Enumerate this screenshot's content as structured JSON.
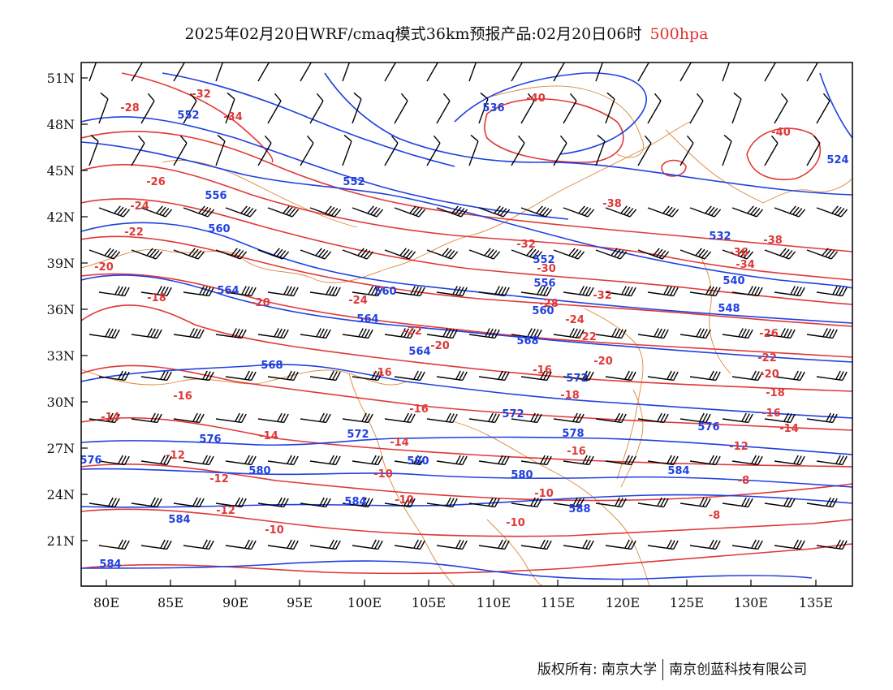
{
  "title": {
    "main": "2025年02月20日WRF/cmaq模式36km预报产品:02月20日06时",
    "level": "500hpa"
  },
  "colors": {
    "height": "#2040e0",
    "temperature": "#e03838",
    "border": "#d8883a",
    "frame": "#000000"
  },
  "axes": {
    "y_labels": [
      "51N",
      "48N",
      "45N",
      "42N",
      "39N",
      "36N",
      "33N",
      "30N",
      "27N",
      "24N",
      "21N"
    ],
    "x_labels": [
      "80E",
      "85E",
      "90E",
      "95E",
      "100E",
      "105E",
      "110E",
      "115E",
      "120E",
      "125E",
      "130E",
      "135E"
    ]
  },
  "contour_labels": {
    "height": [
      "552",
      "536",
      "552",
      "524",
      "556",
      "560",
      "532",
      "552",
      "556",
      "560",
      "564",
      "564",
      "540",
      "548",
      "560",
      "568",
      "568",
      "564",
      "572",
      "572",
      "572",
      "576",
      "576",
      "576",
      "578",
      "580",
      "580",
      "584",
      "580",
      "584",
      "584",
      "584",
      "588"
    ],
    "temperature": [
      "-28",
      "-32",
      "-34",
      "-40",
      "-40",
      "-26",
      "-38",
      "-24",
      "-22",
      "-32",
      "-38",
      "-36",
      "-20",
      "-30",
      "-34",
      "-18",
      "-20",
      "-24",
      "-28",
      "-32",
      "-26",
      "-22",
      "-24",
      "-22",
      "-20",
      "-16",
      "-16",
      "-20",
      "-22",
      "-20",
      "-18",
      "-16",
      "-18",
      "-16",
      "-16",
      "-14",
      "-14",
      "-14",
      "-12",
      "-16",
      "-14",
      "-12",
      "-12",
      "-10",
      "-10",
      "-12",
      "-10",
      "-10",
      "-10",
      "-8",
      "-8"
    ]
  },
  "footer": {
    "copyright": "版权所有: 南京大学",
    "company": "南京创蓝科技有限公司"
  }
}
